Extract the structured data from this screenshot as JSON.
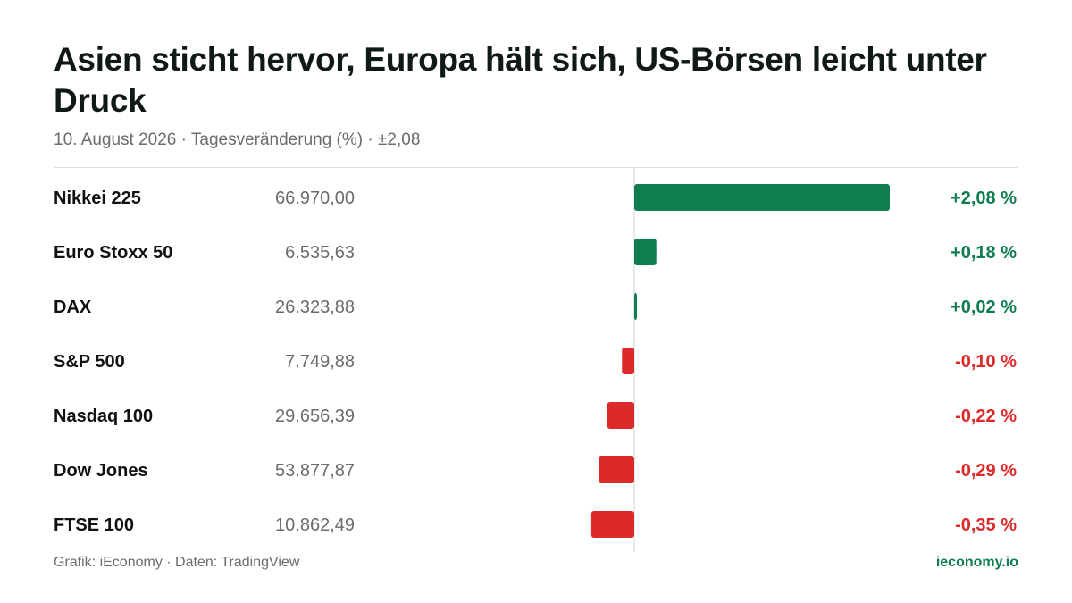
{
  "title": "Asien sticht hervor, Europa hält sich, US-Börsen leicht unter Druck",
  "subtitle": "10. August 2026 · Tagesveränderung (%) · ±2,08",
  "footer": {
    "source": "Grafik: iEconomy · Daten: TradingView",
    "brand": "ieconomy.io"
  },
  "colors": {
    "positive": "#0f7d4f",
    "negative": "#dc2a2a",
    "axis": "#d0d0d0",
    "brand": "#0f7d4f"
  },
  "chart_data": {
    "type": "bar",
    "orientation": "horizontal",
    "xlim": [
      -2.08,
      2.08
    ],
    "unit": "%",
    "categories": [
      "Nikkei 225",
      "Euro Stoxx 50",
      "DAX",
      "S&P 500",
      "Nasdaq 100",
      "Dow Jones",
      "FTSE 100"
    ],
    "levels": [
      "66.970,00",
      "6.535,63",
      "26.323,88",
      "7.749,88",
      "29.656,39",
      "53.877,87",
      "10.862,49"
    ],
    "values": [
      2.08,
      0.18,
      0.02,
      -0.1,
      -0.22,
      -0.29,
      -0.35
    ],
    "labels": [
      "+2,08 %",
      "+0,18 %",
      "+0,02 %",
      "-0,10 %",
      "-0,22 %",
      "-0,29 %",
      "-0,35 %"
    ]
  }
}
